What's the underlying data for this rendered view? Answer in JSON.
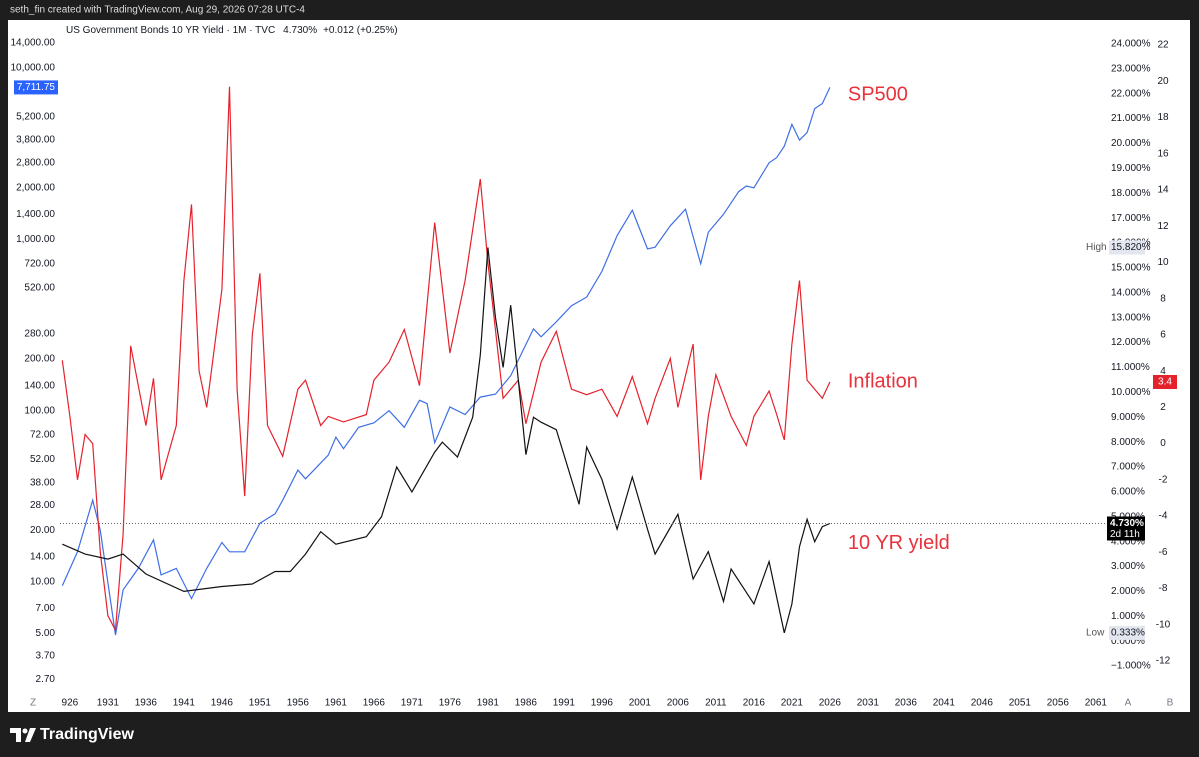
{
  "chart_data": {
    "type": "line",
    "attribution": "seth_fin created with TradingView.com, Aug 29, 2026 07:28 UTC-4",
    "title": "US Government Bonds 10 YR Yield · 1M · TVC",
    "header_value": "4.730%",
    "header_change": "+0.012 (+0.25%)",
    "brand": "TradingView",
    "corner_labels": [
      "Z",
      "A",
      "B"
    ],
    "xlim": [
      1924.7,
      2062.2
    ],
    "xticks": [
      {
        "value": 1926,
        "label": "926"
      },
      1931,
      1936,
      1941,
      1946,
      1951,
      1956,
      1961,
      1966,
      1971,
      1976,
      1981,
      1986,
      1991,
      1996,
      2001,
      2006,
      2011,
      2016,
      2021,
      2026,
      2031,
      2036,
      2041,
      2046,
      2051,
      2056,
      2061
    ],
    "ylim": [
      2.34,
      18580
    ],
    "y_log": true,
    "yticks": [
      {
        "value": 14000,
        "label": "14,000.00"
      },
      {
        "value": 10000,
        "label": "10,000.00"
      },
      {
        "value": 5200,
        "label": "5,200.00"
      },
      {
        "value": 3800,
        "label": "3,800.00"
      },
      {
        "value": 2800,
        "label": "2,800.00"
      },
      {
        "value": 2000,
        "label": "2,000.00"
      },
      {
        "value": 1400,
        "label": "1,400.00"
      },
      {
        "value": 1000,
        "label": "1,000.00"
      },
      {
        "value": 720,
        "label": "720.00"
      },
      {
        "value": 520,
        "label": "520.00"
      },
      {
        "value": 280,
        "label": "280.00"
      },
      {
        "value": 200,
        "label": "200.00"
      },
      {
        "value": 140,
        "label": "140.00"
      },
      {
        "value": 100,
        "label": "100.00"
      },
      {
        "value": 72,
        "label": "72.00"
      },
      {
        "value": 52,
        "label": "52.00"
      },
      {
        "value": 38,
        "label": "38.00"
      },
      {
        "value": 28,
        "label": "28.00"
      },
      {
        "value": 20,
        "label": "20.00"
      },
      {
        "value": 14,
        "label": "14.00"
      },
      {
        "value": 10,
        "label": "10.00"
      },
      {
        "value": 7,
        "label": "7.00"
      },
      {
        "value": 5,
        "label": "5.00"
      },
      {
        "value": 3.7,
        "label": "3.70"
      },
      {
        "value": 2.7,
        "label": "2.70"
      }
    ],
    "y2lim": [
      -1.96,
      24.88
    ],
    "y2ticks": [
      {
        "value": 24,
        "label": "24.000%"
      },
      {
        "value": 23,
        "label": "23.000%"
      },
      {
        "value": 22,
        "label": "22.000%"
      },
      {
        "value": 21,
        "label": "21.000%"
      },
      {
        "value": 20,
        "label": "20.000%"
      },
      {
        "value": 19,
        "label": "19.000%"
      },
      {
        "value": 18,
        "label": "18.000%"
      },
      {
        "value": 17,
        "label": "17.000%"
      },
      {
        "value": 16,
        "label": "16.000%"
      },
      {
        "value": 15,
        "label": "15.000%"
      },
      {
        "value": 14,
        "label": "14.000%"
      },
      {
        "value": 13,
        "label": "13.000%"
      },
      {
        "value": 12,
        "label": "12.000%"
      },
      {
        "value": 11,
        "label": "11.000%"
      },
      {
        "value": 10,
        "label": "10.000%"
      },
      {
        "value": 9,
        "label": "9.000%"
      },
      {
        "value": 8,
        "label": "8.000%"
      },
      {
        "value": 7,
        "label": "7.000%"
      },
      {
        "value": 6,
        "label": "6.000%"
      },
      {
        "value": 5,
        "label": "5.000%"
      },
      {
        "value": 4,
        "label": "4.000%"
      },
      {
        "value": 3,
        "label": "3.000%"
      },
      {
        "value": 2,
        "label": "2.000%"
      },
      {
        "value": 1,
        "label": "1.000%"
      },
      {
        "value": 0,
        "label": "0.000%"
      },
      {
        "value": -1,
        "label": "−1.000%"
      }
    ],
    "y3lim": [
      -13.6,
      23.27
    ],
    "y3ticks": [
      22,
      20,
      18,
      16,
      14,
      12,
      10,
      8,
      6,
      4,
      2,
      0,
      -2,
      -4,
      -6,
      -8,
      -10,
      -12
    ],
    "high": {
      "name": "High",
      "value": 15.82,
      "label": "15.820%"
    },
    "low": {
      "name": "Low",
      "value": 0.333,
      "label": "0.333%"
    },
    "series": [
      {
        "name": "SP500",
        "axis": "y",
        "color": "#3f6fe6",
        "last": {
          "value": 7711.75,
          "label": "7,711.75"
        },
        "x": [
          1925,
          1927,
          1929,
          1930,
          1932,
          1933,
          1935,
          1937,
          1938,
          1940,
          1942,
          1944,
          1946,
          1947,
          1949,
          1951,
          1953,
          1954,
          1956,
          1957,
          1960,
          1961,
          1962,
          1964,
          1966,
          1968,
          1970,
          1972,
          1973,
          1974,
          1976,
          1978,
          1980,
          1982,
          1984,
          1987,
          1988,
          1990,
          1992,
          1994,
          1996,
          1998,
          2000,
          2002,
          2003,
          2005,
          2007,
          2009,
          2010,
          2012,
          2014,
          2015,
          2016,
          2018,
          2019,
          2020,
          2021,
          2022,
          2023,
          2024,
          2025,
          2026
        ],
        "values": [
          9.5,
          15,
          30,
          20,
          4.9,
          9,
          12,
          17.6,
          11,
          12,
          8,
          12,
          17,
          15,
          15,
          22,
          25,
          30,
          45,
          40,
          55,
          70,
          60,
          80,
          85,
          100,
          80,
          115,
          110,
          65,
          105,
          95,
          120,
          125,
          160,
          300,
          270,
          330,
          410,
          460,
          650,
          1050,
          1480,
          880,
          900,
          1200,
          1500,
          720,
          1100,
          1400,
          1900,
          2050,
          2000,
          2800,
          3000,
          3500,
          4700,
          3800,
          4200,
          5800,
          6200,
          7711.75
        ]
      },
      {
        "name": "Inflation",
        "axis": "y3",
        "color": "#e5222c",
        "last": {
          "value": 3.4,
          "label": "3.4"
        },
        "x": [
          1925,
          1926,
          1927,
          1928,
          1929,
          1930,
          1931,
          1932,
          1933,
          1934,
          1936,
          1937,
          1938,
          1940,
          1941,
          1942,
          1943,
          1944,
          1946,
          1947,
          1948,
          1949,
          1950,
          1951,
          1952,
          1954,
          1956,
          1957,
          1959,
          1960,
          1962,
          1965,
          1966,
          1968,
          1970,
          1972,
          1974,
          1976,
          1978,
          1980,
          1981,
          1983,
          1985,
          1986,
          1988,
          1990,
          1992,
          1994,
          1996,
          1998,
          2000,
          2002,
          2003,
          2005,
          2006,
          2008,
          2009,
          2010,
          2011,
          2013,
          2015,
          2016,
          2018,
          2019,
          2020,
          2021,
          2022,
          2023,
          2024,
          2025,
          2026
        ],
        "values": [
          4.6,
          1.5,
          -2,
          0.5,
          0,
          -6,
          -9.5,
          -10.3,
          -5,
          5.4,
          1,
          3.6,
          -2,
          1,
          9,
          13.2,
          4,
          2,
          8.5,
          19.7,
          3,
          -2.9,
          6,
          9.4,
          1,
          -0.7,
          3,
          3.5,
          1,
          1.5,
          1.2,
          1.6,
          3.5,
          4.5,
          6.3,
          3.2,
          12.2,
          5,
          9,
          14.6,
          10,
          2.5,
          3.5,
          1.1,
          4.5,
          6.2,
          3,
          2.7,
          3,
          1.5,
          3.7,
          1.1,
          2.5,
          4.7,
          2,
          5.5,
          -2,
          1.5,
          3.8,
          1.5,
          -0.1,
          1.5,
          2.9,
          1.6,
          0.2,
          5.5,
          9,
          3.5,
          3,
          2.5,
          3.4
        ]
      },
      {
        "name": "10 YR yield",
        "axis": "y2",
        "color": "#111111",
        "last": {
          "value": 4.73,
          "label": "4.730%",
          "note": "2d 11h"
        },
        "x": [
          1925,
          1928,
          1931,
          1933,
          1936,
          1941,
          1946,
          1950,
          1953,
          1955,
          1957,
          1959,
          1961,
          1965,
          1967,
          1969,
          1971,
          1974,
          1975,
          1977,
          1979,
          1980,
          1981,
          1982,
          1983,
          1984,
          1986,
          1987,
          1988,
          1990,
          1993,
          1994,
          1996,
          1998,
          2000,
          2002,
          2003,
          2006,
          2008,
          2010,
          2012,
          2013,
          2016,
          2018,
          2020,
          2021,
          2022,
          2023,
          2024,
          2025,
          2026
        ],
        "values": [
          3.9,
          3.5,
          3.3,
          3.5,
          2.7,
          2,
          2.2,
          2.3,
          2.8,
          2.8,
          3.5,
          4.4,
          3.9,
          4.2,
          5,
          7,
          6,
          7.6,
          8,
          7.4,
          9,
          11.5,
          15.82,
          13,
          11,
          13.5,
          7.5,
          9,
          8.8,
          8.5,
          5.5,
          7.8,
          6.5,
          4.5,
          6.6,
          4.5,
          3.5,
          5.1,
          2.5,
          3.6,
          1.6,
          2.9,
          1.5,
          3.2,
          0.333,
          1.5,
          3.8,
          4.9,
          4,
          4.6,
          4.73
        ]
      }
    ]
  }
}
